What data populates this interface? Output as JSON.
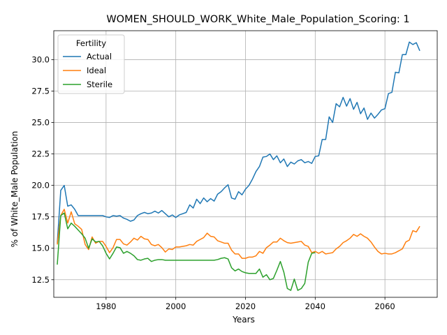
{
  "chart_data": {
    "type": "line",
    "title": "WOMEN_SHOULD_WORK_White_Male_Population_Scoring: 1",
    "xlabel": "Years",
    "ylabel": "% of White_Male Population",
    "xlim": [
      1965,
      2075
    ],
    "ylim": [
      11.1,
      32.3
    ],
    "x_ticks": [
      1980,
      2000,
      2020,
      2040,
      2060
    ],
    "y_ticks": [
      12.5,
      15.0,
      17.5,
      20.0,
      22.5,
      25.0,
      27.5,
      30.0
    ],
    "y_tick_labels": [
      "12.5",
      "15.0",
      "17.5",
      "20.0",
      "22.5",
      "25.0",
      "27.5",
      "30.0"
    ],
    "grid": true,
    "legend": {
      "title": "Fertility",
      "placement": "top-left"
    },
    "series": [
      {
        "name": "Actual",
        "color": "#1f77b4",
        "points": [
          [
            1966,
            15.4
          ],
          [
            1967,
            19.6
          ],
          [
            1968,
            20.0
          ],
          [
            1969,
            18.35
          ],
          [
            1970,
            18.45
          ],
          [
            1971,
            18.1
          ],
          [
            1972,
            17.6
          ],
          [
            1973,
            17.6
          ],
          [
            1974,
            17.6
          ],
          [
            1975,
            17.6
          ],
          [
            1976,
            17.6
          ],
          [
            1977,
            17.6
          ],
          [
            1978,
            17.6
          ],
          [
            1979,
            17.6
          ],
          [
            1980,
            17.5
          ],
          [
            1981,
            17.45
          ],
          [
            1982,
            17.6
          ],
          [
            1983,
            17.55
          ],
          [
            1984,
            17.6
          ],
          [
            1985,
            17.4
          ],
          [
            1986,
            17.3
          ],
          [
            1987,
            17.15
          ],
          [
            1988,
            17.25
          ],
          [
            1989,
            17.6
          ],
          [
            1990,
            17.75
          ],
          [
            1991,
            17.85
          ],
          [
            1992,
            17.75
          ],
          [
            1993,
            17.8
          ],
          [
            1994,
            17.95
          ],
          [
            1995,
            17.8
          ],
          [
            1996,
            18.0
          ],
          [
            1997,
            17.75
          ],
          [
            1998,
            17.5
          ],
          [
            1999,
            17.65
          ],
          [
            2000,
            17.45
          ],
          [
            2001,
            17.65
          ],
          [
            2002,
            17.75
          ],
          [
            2003,
            17.85
          ],
          [
            2004,
            18.45
          ],
          [
            2005,
            18.2
          ],
          [
            2006,
            18.9
          ],
          [
            2007,
            18.55
          ],
          [
            2008,
            19.0
          ],
          [
            2009,
            18.7
          ],
          [
            2010,
            18.95
          ],
          [
            2011,
            18.75
          ],
          [
            2012,
            19.3
          ],
          [
            2013,
            19.5
          ],
          [
            2014,
            19.8
          ],
          [
            2015,
            20.05
          ],
          [
            2016,
            19.0
          ],
          [
            2017,
            18.9
          ],
          [
            2018,
            19.5
          ],
          [
            2019,
            19.25
          ],
          [
            2020,
            19.7
          ],
          [
            2021,
            20.0
          ],
          [
            2022,
            20.5
          ],
          [
            2023,
            21.1
          ],
          [
            2024,
            21.5
          ],
          [
            2025,
            22.25
          ],
          [
            2026,
            22.3
          ],
          [
            2027,
            22.5
          ],
          [
            2028,
            22.05
          ],
          [
            2029,
            22.35
          ],
          [
            2030,
            21.8
          ],
          [
            2031,
            22.1
          ],
          [
            2032,
            21.5
          ],
          [
            2033,
            21.85
          ],
          [
            2034,
            21.7
          ],
          [
            2035,
            21.95
          ],
          [
            2036,
            22.05
          ],
          [
            2037,
            21.8
          ],
          [
            2038,
            21.9
          ],
          [
            2039,
            21.75
          ],
          [
            2040,
            22.3
          ],
          [
            2041,
            22.35
          ],
          [
            2042,
            23.65
          ],
          [
            2043,
            23.65
          ],
          [
            2044,
            25.45
          ],
          [
            2045,
            25.0
          ],
          [
            2046,
            26.5
          ],
          [
            2047,
            26.25
          ],
          [
            2048,
            27.0
          ],
          [
            2049,
            26.3
          ],
          [
            2050,
            26.9
          ],
          [
            2051,
            26.05
          ],
          [
            2052,
            26.6
          ],
          [
            2053,
            25.7
          ],
          [
            2054,
            26.15
          ],
          [
            2055,
            25.25
          ],
          [
            2056,
            25.75
          ],
          [
            2057,
            25.35
          ],
          [
            2058,
            25.65
          ],
          [
            2059,
            26.0
          ],
          [
            2060,
            26.1
          ],
          [
            2061,
            27.3
          ],
          [
            2062,
            27.4
          ],
          [
            2063,
            29.0
          ],
          [
            2064,
            28.95
          ],
          [
            2065,
            30.4
          ],
          [
            2066,
            30.4
          ],
          [
            2067,
            31.4
          ],
          [
            2068,
            31.2
          ],
          [
            2069,
            31.35
          ],
          [
            2070,
            30.7
          ]
        ]
      },
      {
        "name": "Ideal",
        "color": "#ff7f0e",
        "points": [
          [
            1966,
            15.3
          ],
          [
            1967,
            17.6
          ],
          [
            1968,
            18.1
          ],
          [
            1969,
            17.0
          ],
          [
            1970,
            17.9
          ],
          [
            1971,
            16.95
          ],
          [
            1972,
            16.75
          ],
          [
            1973,
            16.5
          ],
          [
            1974,
            15.3
          ],
          [
            1975,
            14.9
          ],
          [
            1976,
            15.9
          ],
          [
            1977,
            15.4
          ],
          [
            1978,
            15.55
          ],
          [
            1979,
            15.55
          ],
          [
            1980,
            15.15
          ],
          [
            1981,
            14.65
          ],
          [
            1982,
            15.05
          ],
          [
            1983,
            15.7
          ],
          [
            1984,
            15.7
          ],
          [
            1985,
            15.35
          ],
          [
            1986,
            15.25
          ],
          [
            1987,
            15.5
          ],
          [
            1988,
            15.8
          ],
          [
            1989,
            15.65
          ],
          [
            1990,
            15.95
          ],
          [
            1991,
            15.75
          ],
          [
            1992,
            15.7
          ],
          [
            1993,
            15.3
          ],
          [
            1994,
            15.2
          ],
          [
            1995,
            15.3
          ],
          [
            1996,
            15.05
          ],
          [
            1997,
            14.7
          ],
          [
            1998,
            14.95
          ],
          [
            1999,
            14.9
          ],
          [
            2000,
            15.1
          ],
          [
            2001,
            15.1
          ],
          [
            2002,
            15.15
          ],
          [
            2003,
            15.2
          ],
          [
            2004,
            15.3
          ],
          [
            2005,
            15.25
          ],
          [
            2006,
            15.55
          ],
          [
            2007,
            15.7
          ],
          [
            2008,
            15.85
          ],
          [
            2009,
            16.2
          ],
          [
            2010,
            15.95
          ],
          [
            2011,
            15.9
          ],
          [
            2012,
            15.6
          ],
          [
            2013,
            15.5
          ],
          [
            2014,
            15.4
          ],
          [
            2015,
            15.4
          ],
          [
            2016,
            14.85
          ],
          [
            2017,
            14.55
          ],
          [
            2018,
            14.55
          ],
          [
            2019,
            14.2
          ],
          [
            2020,
            14.2
          ],
          [
            2021,
            14.3
          ],
          [
            2022,
            14.3
          ],
          [
            2023,
            14.4
          ],
          [
            2024,
            14.75
          ],
          [
            2025,
            14.6
          ],
          [
            2026,
            15.05
          ],
          [
            2027,
            15.25
          ],
          [
            2028,
            15.5
          ],
          [
            2029,
            15.5
          ],
          [
            2030,
            15.8
          ],
          [
            2031,
            15.6
          ],
          [
            2032,
            15.45
          ],
          [
            2033,
            15.4
          ],
          [
            2034,
            15.45
          ],
          [
            2035,
            15.5
          ],
          [
            2036,
            15.55
          ],
          [
            2037,
            15.25
          ],
          [
            2038,
            15.15
          ],
          [
            2039,
            14.65
          ],
          [
            2040,
            14.75
          ],
          [
            2041,
            14.6
          ],
          [
            2042,
            14.75
          ],
          [
            2043,
            14.55
          ],
          [
            2044,
            14.6
          ],
          [
            2045,
            14.65
          ],
          [
            2046,
            14.95
          ],
          [
            2047,
            15.15
          ],
          [
            2048,
            15.45
          ],
          [
            2049,
            15.6
          ],
          [
            2050,
            15.8
          ],
          [
            2051,
            16.1
          ],
          [
            2052,
            15.95
          ],
          [
            2053,
            16.15
          ],
          [
            2054,
            15.95
          ],
          [
            2055,
            15.8
          ],
          [
            2056,
            15.5
          ],
          [
            2057,
            15.1
          ],
          [
            2058,
            14.75
          ],
          [
            2059,
            14.55
          ],
          [
            2060,
            14.6
          ],
          [
            2061,
            14.55
          ],
          [
            2062,
            14.55
          ],
          [
            2063,
            14.65
          ],
          [
            2064,
            14.8
          ],
          [
            2065,
            14.95
          ],
          [
            2066,
            15.5
          ],
          [
            2067,
            15.65
          ],
          [
            2068,
            16.4
          ],
          [
            2069,
            16.3
          ],
          [
            2070,
            16.75
          ]
        ]
      },
      {
        "name": "Sterile",
        "color": "#2ca02c",
        "points": [
          [
            1966,
            13.7
          ],
          [
            1967,
            17.6
          ],
          [
            1968,
            17.8
          ],
          [
            1969,
            16.55
          ],
          [
            1970,
            17.0
          ],
          [
            1971,
            16.75
          ],
          [
            1972,
            16.45
          ],
          [
            1973,
            16.15
          ],
          [
            1974,
            15.8
          ],
          [
            1975,
            15.0
          ],
          [
            1976,
            15.75
          ],
          [
            1977,
            15.5
          ],
          [
            1978,
            15.55
          ],
          [
            1979,
            15.2
          ],
          [
            1980,
            14.6
          ],
          [
            1981,
            14.15
          ],
          [
            1982,
            14.6
          ],
          [
            1983,
            15.1
          ],
          [
            1984,
            15.05
          ],
          [
            1985,
            14.6
          ],
          [
            1986,
            14.75
          ],
          [
            1987,
            14.6
          ],
          [
            1988,
            14.4
          ],
          [
            1989,
            14.1
          ],
          [
            1990,
            14.05
          ],
          [
            1991,
            14.15
          ],
          [
            1992,
            14.2
          ],
          [
            1993,
            13.95
          ],
          [
            1994,
            14.05
          ],
          [
            1995,
            14.1
          ],
          [
            1996,
            14.1
          ],
          [
            1997,
            14.05
          ],
          [
            1998,
            14.05
          ],
          [
            1999,
            14.05
          ],
          [
            2000,
            14.05
          ],
          [
            2001,
            14.05
          ],
          [
            2002,
            14.05
          ],
          [
            2003,
            14.05
          ],
          [
            2004,
            14.05
          ],
          [
            2005,
            14.05
          ],
          [
            2006,
            14.05
          ],
          [
            2007,
            14.05
          ],
          [
            2008,
            14.05
          ],
          [
            2009,
            14.05
          ],
          [
            2010,
            14.05
          ],
          [
            2011,
            14.05
          ],
          [
            2012,
            14.1
          ],
          [
            2013,
            14.2
          ],
          [
            2014,
            14.25
          ],
          [
            2015,
            14.15
          ],
          [
            2016,
            13.45
          ],
          [
            2017,
            13.2
          ],
          [
            2018,
            13.35
          ],
          [
            2019,
            13.15
          ],
          [
            2020,
            13.05
          ],
          [
            2021,
            13.0
          ],
          [
            2022,
            13.0
          ],
          [
            2023,
            13.0
          ],
          [
            2024,
            13.35
          ],
          [
            2025,
            12.7
          ],
          [
            2026,
            12.9
          ],
          [
            2027,
            12.5
          ],
          [
            2028,
            12.6
          ],
          [
            2029,
            13.25
          ],
          [
            2030,
            13.95
          ],
          [
            2031,
            13.1
          ],
          [
            2032,
            11.8
          ],
          [
            2033,
            11.65
          ],
          [
            2034,
            12.55
          ],
          [
            2035,
            11.65
          ],
          [
            2036,
            11.8
          ],
          [
            2037,
            12.2
          ],
          [
            2038,
            13.9
          ],
          [
            2039,
            14.6
          ],
          [
            2040,
            14.65
          ]
        ]
      }
    ]
  }
}
